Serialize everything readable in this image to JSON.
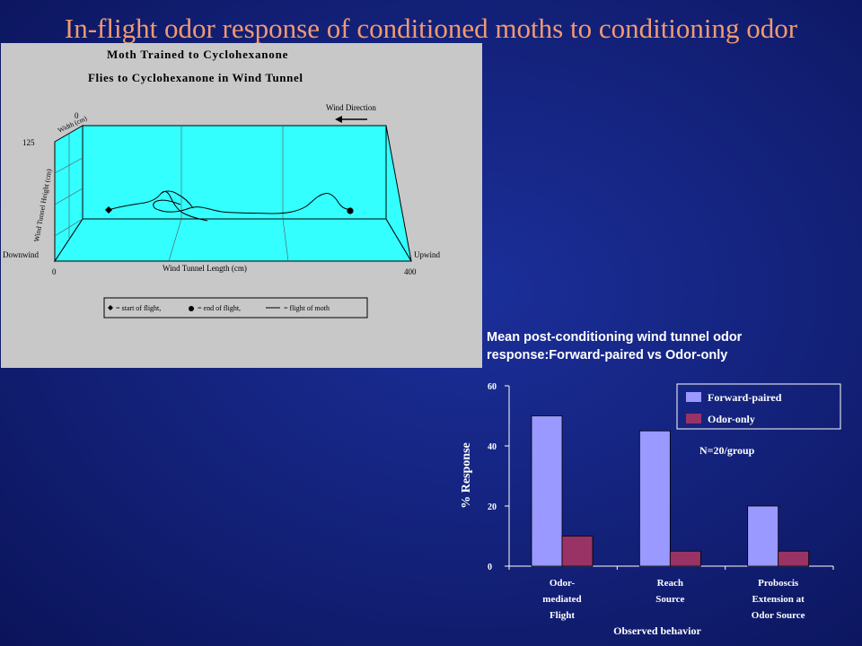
{
  "slide": {
    "title": "In-flight odor response of conditioned moths  to conditioning odor"
  },
  "flight_panel": {
    "title_line1": "Moth Trained to Cyclohexanone",
    "title_line2": "Flies to Cyclohexanone in Wind Tunnel",
    "wind_direction_label": "Wind Direction",
    "width_axis_label": "Width (cm)",
    "height_axis_label": "Wind Tunnel Height (cm)",
    "length_axis_label": "Wind Tunnel Length (cm)",
    "downwind_label": "Downwind",
    "upwind_label": "Upwind",
    "tick_125": "125",
    "tick_0_top": "0",
    "tick_0_bottom": "0",
    "tick_400": "400",
    "legend": {
      "start": "= start of flight,",
      "end": "= end of flight,",
      "path": "= flight of moth"
    }
  },
  "chart_title": {
    "line1": "Mean post-conditioning wind tunnel odor",
    "line2": "response:Forward-paired vs Odor-only"
  },
  "chart_data": {
    "type": "bar",
    "categories": [
      [
        "Odor-",
        "mediated",
        "Flight"
      ],
      [
        "Reach",
        "Source"
      ],
      [
        "Proboscis",
        "Extension at",
        "Odor Source"
      ]
    ],
    "series": [
      {
        "name": "Forward-paired",
        "values": [
          50,
          45,
          20
        ],
        "color": "#9999ff"
      },
      {
        "name": "Odor-only",
        "values": [
          10,
          5,
          5
        ],
        "color": "#993366"
      }
    ],
    "ylabel": "% Response",
    "xlabel": "Observed behavior",
    "ylim": [
      0,
      60
    ],
    "yticks": [
      0,
      20,
      40,
      60
    ],
    "annotation": "N=20/group",
    "legend_position": "top-right",
    "grid": false
  }
}
